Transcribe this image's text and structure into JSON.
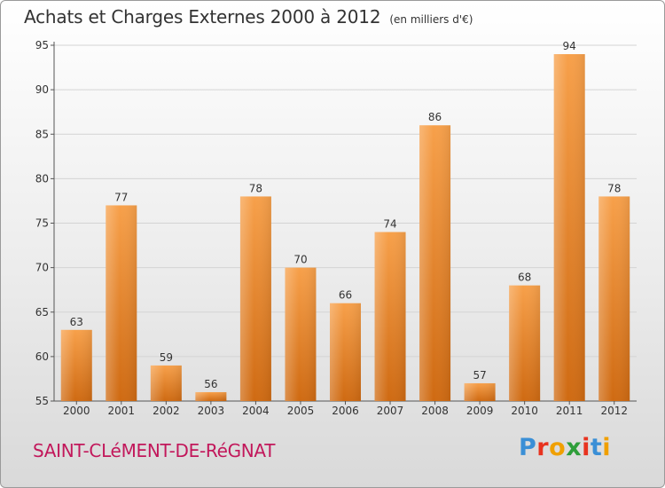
{
  "chart_data": {
    "type": "bar",
    "title": "Achats et Charges Externes 2000 à 2012",
    "subtitle": "(en milliers d'€)",
    "categories": [
      "2000",
      "2001",
      "2002",
      "2003",
      "2004",
      "2005",
      "2006",
      "2007",
      "2008",
      "2009",
      "2010",
      "2011",
      "2012"
    ],
    "values": [
      63,
      77,
      59,
      56,
      78,
      70,
      66,
      74,
      86,
      57,
      68,
      94,
      78
    ],
    "ylim": [
      55,
      95
    ],
    "yticks": [
      55,
      60,
      65,
      70,
      75,
      80,
      85,
      90,
      95
    ],
    "grid": true,
    "bar_color": "#f0902a",
    "bar_color_dark": "#cf6a12"
  },
  "footer": {
    "commune": "SAINT-CLéMENT-DE-RéGNAT",
    "brand": [
      "P",
      "r",
      "o",
      "x",
      "i",
      "t",
      "i"
    ],
    "brand_colors": [
      "#3a8fd6",
      "#e8331f",
      "#f0a000",
      "#2e9e3a",
      "#e8331f",
      "#3a8fd6",
      "#f0a000"
    ]
  }
}
